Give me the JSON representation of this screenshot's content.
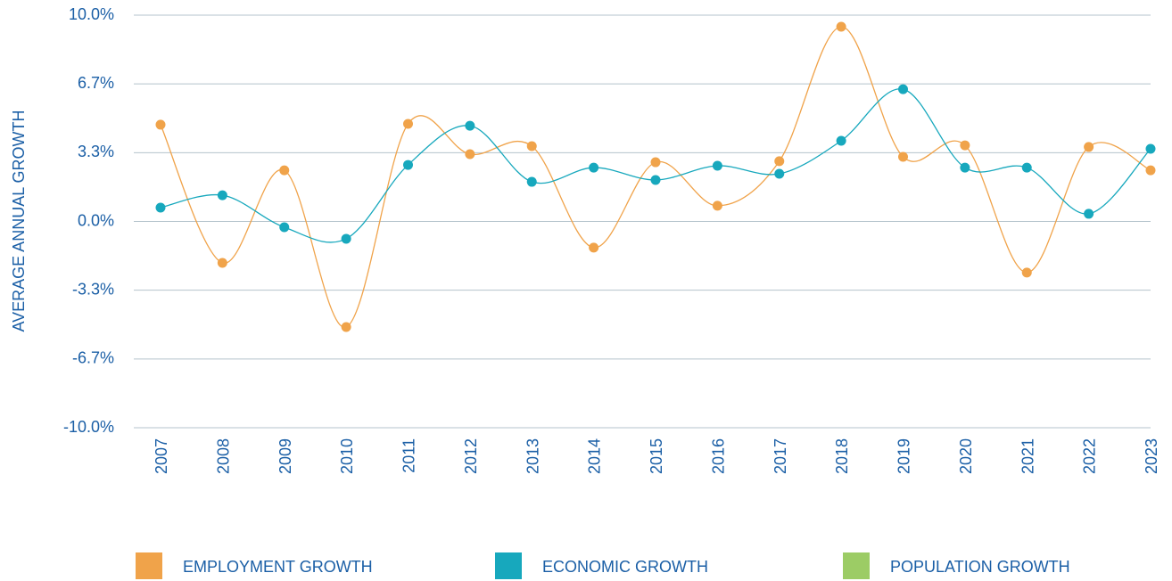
{
  "chart_data": {
    "type": "line",
    "y_label": "AVERAGE ANNUAL GROWTH",
    "categories": [
      "2007",
      "2008",
      "2009",
      "2010",
      "2011",
      "2012",
      "2013",
      "2014",
      "2015",
      "2016",
      "2017",
      "2018",
      "2019",
      "2020",
      "2021",
      "2022",
      "2023"
    ],
    "series": [
      {
        "name": "EMPLOYMENT GROWTH",
        "color": "#f0a34a",
        "values": [
          4.69,
          -2.01,
          2.48,
          -5.12,
          4.73,
          3.26,
          3.65,
          -1.27,
          2.87,
          0.76,
          2.92,
          9.44,
          3.13,
          3.69,
          -2.48,
          3.61,
          2.48
        ]
      },
      {
        "name": "ECONOMIC GROWTH",
        "color": "#17a8bd",
        "values": [
          0.67,
          1.27,
          -0.28,
          -0.84,
          2.74,
          4.64,
          1.92,
          2.61,
          2.01,
          2.7,
          2.31,
          3.91,
          6.41,
          2.61,
          2.61,
          0.37,
          3.52
        ]
      },
      {
        "name": "POPULATION GROWTH",
        "color": "#9ccc65",
        "values": [
          null,
          null,
          null,
          null,
          null,
          null,
          null,
          null,
          null,
          null,
          null,
          null,
          null,
          null,
          null,
          null,
          null
        ]
      }
    ],
    "ylim": [
      -10,
      10
    ],
    "yticks": [
      {
        "value": 10,
        "label": "10.0%"
      },
      {
        "value": 6.667,
        "label": "6.7%"
      },
      {
        "value": 3.333,
        "label": "3.3%"
      },
      {
        "value": 0,
        "label": "0.0%"
      },
      {
        "value": -3.333,
        "label": "-3.3%"
      },
      {
        "value": -6.667,
        "label": "-6.7%"
      },
      {
        "value": -10,
        "label": "-10.0%"
      }
    ],
    "grid": true,
    "legend": "bottom"
  }
}
